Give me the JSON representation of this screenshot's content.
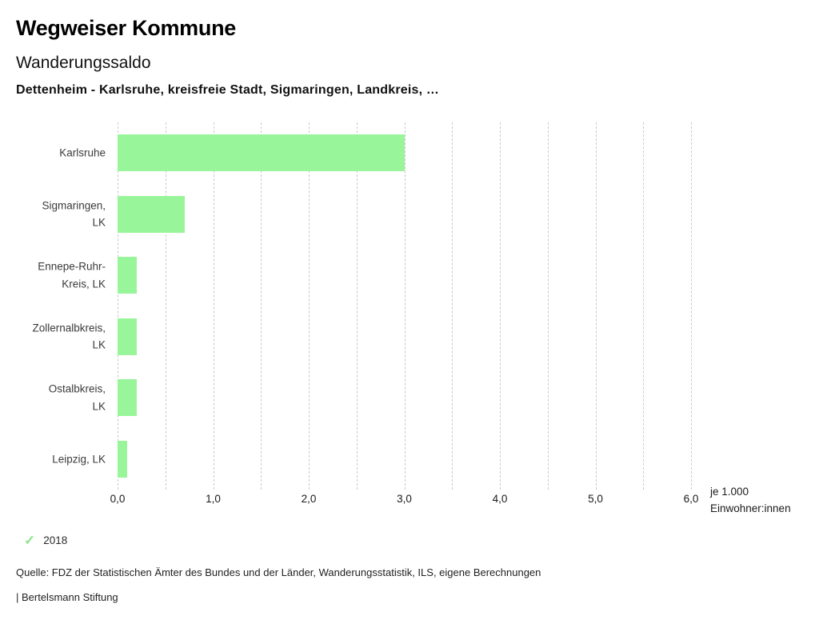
{
  "header": {
    "app_title": "Wegweiser Kommune",
    "chart_title": "Wanderungssaldo",
    "subtitle": "Dettenheim - Karlsruhe, kreisfreie Stadt, Sigmaringen, Landkreis, …"
  },
  "chart_data": {
    "type": "bar",
    "orientation": "horizontal",
    "title": "Wanderungssaldo",
    "subtitle": "Dettenheim - Karlsruhe, kreisfreie Stadt, Sigmaringen, Landkreis, …",
    "categories": [
      "Karlsruhe",
      "Sigmaringen, LK",
      "Ennepe-Ruhr-Kreis, LK",
      "Zollernalbkreis, LK",
      "Ostalbkreis, LK",
      "Leipzig, LK"
    ],
    "category_lines": [
      [
        "Karlsruhe"
      ],
      [
        "Sigmaringen,",
        "LK"
      ],
      [
        "Ennepe-Ruhr-",
        "Kreis, LK"
      ],
      [
        "Zollernalbkreis,",
        "LK"
      ],
      [
        "Ostalbkreis,",
        "LK"
      ],
      [
        "Leipzig, LK"
      ]
    ],
    "series": [
      {
        "name": "2018",
        "values": [
          3.0,
          0.7,
          0.2,
          0.2,
          0.2,
          0.1
        ]
      }
    ],
    "xlabel": "je 1.000 Einwohner:innen",
    "unit_label_lines": [
      "je 1.000",
      "Einwohner:innen"
    ],
    "xlim": [
      0,
      6
    ],
    "x_tick_values": [
      0,
      1,
      2,
      3,
      4,
      5,
      6
    ],
    "x_tick_labels": [
      "0,0",
      "1,0",
      "2,0",
      "3,0",
      "4,0",
      "5,0",
      "6,0"
    ],
    "x_minor_step": 0.5,
    "grid": "vertical-dashed",
    "legend_position": "bottom-left",
    "bar_color": "#99f599",
    "gridline_color": "#c9c9c9"
  },
  "legend": {
    "check_icon": "✓",
    "check_color": "#8de58d"
  },
  "footer": {
    "source": "Quelle: FDZ der Statistischen Ämter des Bundes und der Länder, Wanderungsstatistik, ILS, eigene Berechnungen",
    "attribution": "| Bertelsmann Stiftung"
  }
}
